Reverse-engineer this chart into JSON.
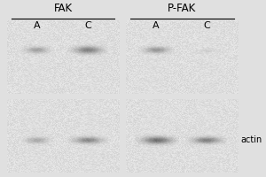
{
  "background_color": "#e0e0e0",
  "title_fak": "FAK",
  "title_pfak": "P-FAK",
  "lane_labels": [
    "A",
    "C"
  ],
  "actin_label": "actin",
  "fig_width": 3.0,
  "fig_height": 2.0,
  "dpi": 100,
  "noise_base": 0.88,
  "noise_intensity": 0.1,
  "panel_base_color": 0.88
}
